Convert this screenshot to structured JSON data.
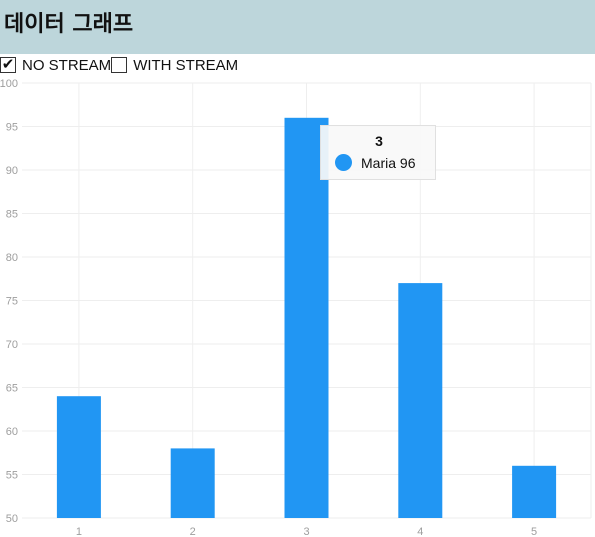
{
  "header": {
    "title": "데이터 그래프"
  },
  "controls": {
    "no_stream": {
      "label": "NO STREAM",
      "checked": true
    },
    "with_stream": {
      "label": "WITH STREAM",
      "checked": false
    }
  },
  "colors": {
    "header_bg": "#bdd6db",
    "bar": "#2196f3",
    "grid": "#eeeeee",
    "tick": "#9e9e9e"
  },
  "tooltip": {
    "title": "3",
    "series_name": "Maria",
    "value": "96"
  },
  "chart_data": {
    "type": "bar",
    "categories": [
      "1",
      "2",
      "3",
      "4",
      "5"
    ],
    "series": [
      {
        "name": "Maria",
        "values": [
          64,
          58,
          96,
          77,
          56
        ]
      }
    ],
    "ylim": [
      50,
      100
    ],
    "yticks": [
      50,
      55,
      60,
      65,
      70,
      75,
      80,
      85,
      90,
      95,
      100
    ],
    "grid": true
  }
}
